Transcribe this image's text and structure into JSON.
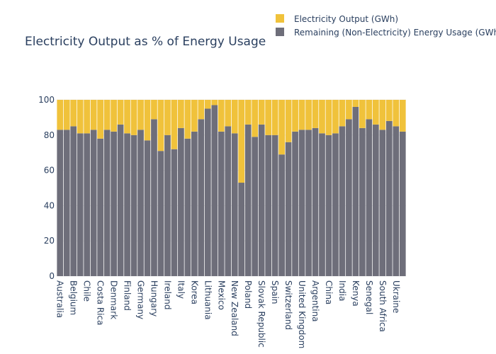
{
  "chart_data": {
    "type": "bar",
    "barmode": "stack",
    "title": "Electricity Output as % of Energy Usage",
    "xlabel": "",
    "ylabel": "",
    "ylim": [
      0,
      100
    ],
    "yticks": [
      0,
      20,
      40,
      60,
      80,
      100
    ],
    "grid": true,
    "legend_position": "top-right",
    "tick_labels": [
      "Australia",
      "",
      "Belgium",
      "",
      "Chile",
      "",
      "Costa Rica",
      "",
      "Denmark",
      "",
      "Finland",
      "",
      "Germany",
      "",
      "Hungary",
      "",
      "Ireland",
      "",
      "Italy",
      "",
      "Korea",
      "",
      "Lithuania",
      "",
      "Mexico",
      "",
      "New Zealand",
      "",
      "Poland",
      "",
      "Slovak Republic",
      "",
      "Spain",
      "",
      "Switzerland",
      "",
      "United Kingdom",
      "",
      "Argentina",
      "",
      "China",
      "",
      "India",
      "",
      "Kenya",
      "",
      "Senegal",
      "",
      "South Africa",
      "",
      "Ukraine",
      ""
    ],
    "series": [
      {
        "name": "Remaining (Non-Electricity) Energy Usage (GWh)",
        "color": "#6e6e7a",
        "values": [
          83,
          83,
          85,
          81,
          81,
          83,
          78,
          83,
          82,
          86,
          81,
          80,
          83,
          77,
          89,
          71,
          80,
          72,
          84,
          78,
          82,
          89,
          95,
          97,
          82,
          85,
          81,
          53,
          86,
          79,
          86,
          80,
          80,
          69,
          76,
          82,
          83,
          83,
          84,
          81,
          80,
          81,
          85,
          89,
          96,
          84,
          89,
          86,
          83,
          88,
          85,
          82
        ]
      },
      {
        "name": "Electricity Output (GWh)",
        "color": "#f0c23b",
        "values": [
          17,
          17,
          15,
          19,
          19,
          17,
          22,
          17,
          18,
          14,
          19,
          20,
          17,
          23,
          11,
          29,
          20,
          28,
          16,
          22,
          18,
          11,
          5,
          3,
          18,
          15,
          19,
          47,
          14,
          21,
          14,
          20,
          20,
          31,
          24,
          18,
          17,
          17,
          16,
          19,
          20,
          19,
          15,
          11,
          4,
          16,
          11,
          14,
          17,
          12,
          15,
          18
        ]
      }
    ]
  }
}
